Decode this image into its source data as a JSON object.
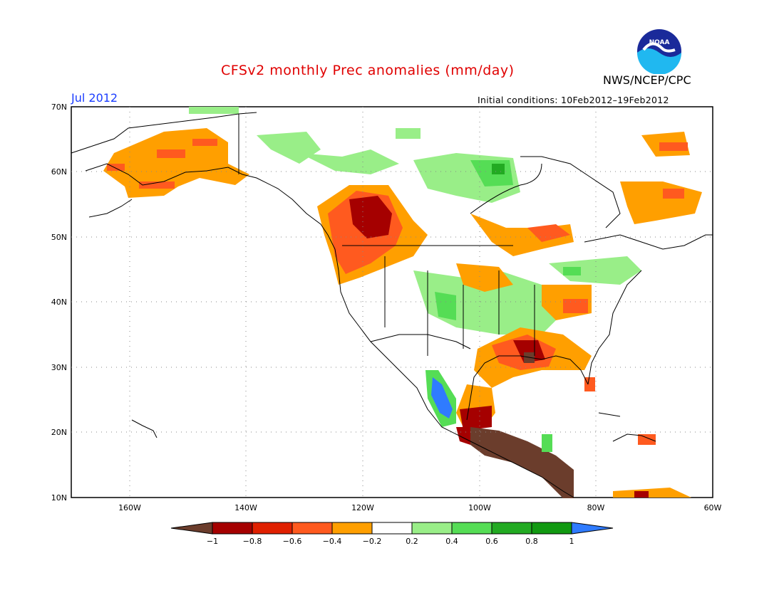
{
  "title": "CFSv2 monthly Prec anomalies (mm/day)",
  "org_label": "NWS/NCEP/CPC",
  "period": "Jul 2012",
  "initial_conditions": "Initial conditions: 10Feb2012–19Feb2012",
  "logo": {
    "name": "noaa-logo",
    "text": "NOAA"
  },
  "map": {
    "lat_labels": [
      "70N",
      "60N",
      "50N",
      "40N",
      "30N",
      "20N",
      "10N"
    ],
    "lon_labels": [
      "160W",
      "140W",
      "120W",
      "100W",
      "80W",
      "60W"
    ]
  },
  "colorbar": {
    "labels": [
      "−1",
      "−0.8",
      "−0.6",
      "−0.4",
      "−0.2",
      "0.2",
      "0.4",
      "0.6",
      "0.8",
      "1"
    ],
    "colors": [
      "#6b3d2c",
      "#a50000",
      "#e02000",
      "#ff5a1f",
      "#ff9f00",
      "#ffffff",
      "#99ee88",
      "#55dd55",
      "#22aa22",
      "#119911",
      "#2f7bff"
    ]
  }
}
